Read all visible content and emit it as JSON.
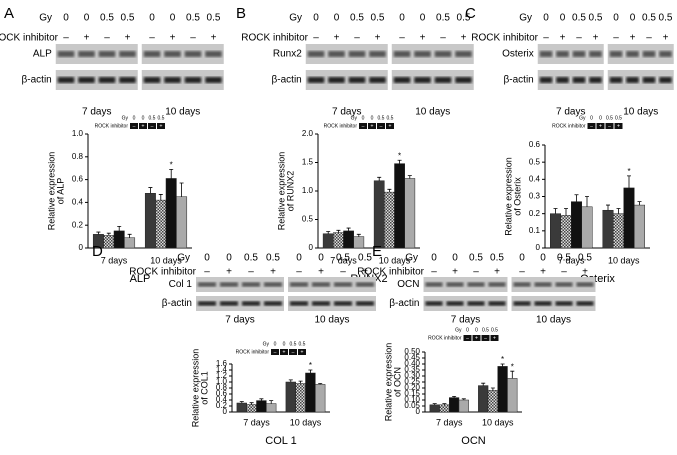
{
  "chart_data": [
    {
      "type": "bar",
      "panel": "A",
      "xlabel": "ALP",
      "ylabel": [
        "Relative expression",
        "of ALP"
      ],
      "categories": [
        "7 days",
        "10 days"
      ],
      "series": [
        {
          "color": "#3a3a3a",
          "values": [
            0.12,
            0.48
          ],
          "errors": [
            0.02,
            0.05
          ]
        },
        {
          "color": "#777777",
          "pattern": "checker",
          "values": [
            0.11,
            0.42
          ],
          "errors": [
            0.02,
            0.05
          ]
        },
        {
          "color": "#111111",
          "values": [
            0.15,
            0.61
          ],
          "errors": [
            0.04,
            0.08
          ]
        },
        {
          "color": "#aaaaaa",
          "values": [
            0.09,
            0.45
          ],
          "errors": [
            0.03,
            0.12
          ]
        }
      ],
      "ylim": [
        0,
        1
      ],
      "yticks": [
        0,
        0.2,
        0.4,
        0.6,
        0.8,
        {
          "value": 1,
          "label": "1.0"
        }
      ],
      "annotations": [
        {
          "text": "*",
          "series": 2,
          "category": 1
        }
      ],
      "legend": {
        "gy_label": "Gy",
        "gy": [
          "0",
          "0",
          "0.5",
          "0.5"
        ],
        "rock_label": "ROCK inhibitor",
        "rock": [
          "–",
          "+",
          "–",
          "+"
        ]
      },
      "blot": {
        "gy_label": "Gy",
        "gy": [
          "0",
          "0",
          "0.5",
          "0.5",
          "0",
          "0",
          "0.5",
          "0.5"
        ],
        "rock_label": "ROCK inhibitor",
        "rock": [
          "–",
          "+",
          "–",
          "+",
          "–",
          "+",
          "–",
          "+"
        ],
        "bands": [
          "ALP",
          "β-actin"
        ],
        "groups": [
          "7 days",
          "10 days"
        ]
      }
    },
    {
      "type": "bar",
      "panel": "B",
      "xlabel": "RUNX2",
      "ylabel": [
        "Relative expression",
        "of RUNX2"
      ],
      "categories": [
        "7 days",
        "10 days"
      ],
      "series": [
        {
          "color": "#3a3a3a",
          "values": [
            0.25,
            1.18
          ],
          "errors": [
            0.04,
            0.06
          ]
        },
        {
          "color": "#777777",
          "pattern": "checker",
          "values": [
            0.27,
            0.98
          ],
          "errors": [
            0.04,
            0.05
          ]
        },
        {
          "color": "#111111",
          "values": [
            0.3,
            1.48
          ],
          "errors": [
            0.05,
            0.06
          ]
        },
        {
          "color": "#aaaaaa",
          "values": [
            0.2,
            1.22
          ],
          "errors": [
            0.04,
            0.05
          ]
        }
      ],
      "ylim": [
        0,
        2
      ],
      "yticks": [
        0,
        0.5,
        {
          "value": 1,
          "label": "1.0"
        },
        1.5,
        {
          "value": 2,
          "label": "2.0"
        }
      ],
      "annotations": [
        {
          "text": "*",
          "series": 2,
          "category": 1
        }
      ],
      "legend": {
        "gy_label": "Gy",
        "gy": [
          "0",
          "0",
          "0.5",
          "0.5"
        ],
        "rock_label": "ROCK inhibitor",
        "rock": [
          "–",
          "+",
          "–",
          "+"
        ]
      },
      "blot": {
        "gy_label": "Gy",
        "gy": [
          "0",
          "0",
          "0.5",
          "0.5",
          "0",
          "0",
          "0.5",
          "0.5"
        ],
        "rock_label": "ROCK inhibitor",
        "rock": [
          "–",
          "+",
          "–",
          "+",
          "–",
          "+",
          "–",
          "+"
        ],
        "bands": [
          "Runx2",
          "β-actin"
        ],
        "groups": [
          "7 days",
          "10 days"
        ]
      }
    },
    {
      "type": "bar",
      "panel": "C",
      "xlabel": "Osterix",
      "ylabel": [
        "Relative expression",
        "of Osterix"
      ],
      "categories": [
        "7 days",
        "10 days"
      ],
      "series": [
        {
          "color": "#3a3a3a",
          "values": [
            0.2,
            0.22
          ],
          "errors": [
            0.03,
            0.03
          ]
        },
        {
          "color": "#777777",
          "pattern": "checker",
          "values": [
            0.19,
            0.2
          ],
          "errors": [
            0.04,
            0.03
          ]
        },
        {
          "color": "#111111",
          "values": [
            0.27,
            0.35
          ],
          "errors": [
            0.04,
            0.07
          ]
        },
        {
          "color": "#aaaaaa",
          "values": [
            0.24,
            0.25
          ],
          "errors": [
            0.06,
            0.02
          ]
        }
      ],
      "ylim": [
        0,
        0.6
      ],
      "yticks": [
        0,
        0.1,
        0.2,
        0.3,
        0.4,
        0.5,
        0.6
      ],
      "annotations": [
        {
          "text": "*",
          "series": 2,
          "category": 1
        }
      ],
      "legend": {
        "gy_label": "Gy",
        "gy": [
          "0",
          "0",
          "0.5",
          "0.5"
        ],
        "rock_label": "ROCK inhibitor",
        "rock": [
          "–",
          "+",
          "–",
          "+"
        ]
      },
      "blot": {
        "gy_label": "Gy",
        "gy": [
          "0",
          "0",
          "0.5",
          "0.5",
          "0",
          "0",
          "0.5",
          "0.5"
        ],
        "rock_label": "ROCK inhibitor",
        "rock": [
          "–",
          "+",
          "–",
          "+",
          "–",
          "+",
          "–",
          "+"
        ],
        "bands": [
          "Osterix",
          "β-actin"
        ],
        "groups": [
          "7 days",
          "10 days"
        ]
      }
    },
    {
      "type": "bar",
      "panel": "D",
      "xlabel": "COL 1",
      "ylabel": [
        "Relative expression",
        "of COL1"
      ],
      "categories": [
        "7 days",
        "10 days"
      ],
      "series": [
        {
          "color": "#3a3a3a",
          "values": [
            0.3,
            1.0
          ],
          "errors": [
            0.05,
            0.07
          ]
        },
        {
          "color": "#777777",
          "pattern": "checker",
          "values": [
            0.25,
            0.95
          ],
          "errors": [
            0.06,
            0.08
          ]
        },
        {
          "color": "#111111",
          "values": [
            0.38,
            1.3
          ],
          "errors": [
            0.06,
            0.1
          ]
        },
        {
          "color": "#aaaaaa",
          "values": [
            0.28,
            0.92
          ],
          "errors": [
            0.1,
            0.03
          ]
        }
      ],
      "ylim": [
        0,
        1.6
      ],
      "yticks": [
        0,
        0.2,
        0.4,
        0.6,
        0.8,
        {
          "value": 1,
          "label": "1.0"
        },
        1.2,
        1.4,
        1.6
      ],
      "annotations": [
        {
          "text": "*",
          "series": 2,
          "category": 1
        }
      ],
      "legend": {
        "gy_label": "Gy",
        "gy": [
          "0",
          "0",
          "0.5",
          "0.5"
        ],
        "rock_label": "ROCK inhibitor",
        "rock": [
          "–",
          "+",
          "–",
          "+"
        ]
      },
      "blot": {
        "gy_label": "Gy",
        "gy": [
          "0",
          "0",
          "0.5",
          "0.5",
          "0",
          "0",
          "0.5",
          "0.5"
        ],
        "rock_label": "ROCK inhibitor",
        "rock": [
          "–",
          "+",
          "–",
          "+",
          "–",
          "+",
          "–",
          "+"
        ],
        "bands": [
          "Col 1",
          "β-actin"
        ],
        "groups": [
          "7 days",
          "10 days"
        ]
      }
    },
    {
      "type": "bar",
      "panel": "E",
      "xlabel": "OCN",
      "ylabel": [
        "Relative expression",
        "of OCN"
      ],
      "categories": [
        "7 days",
        "10 days"
      ],
      "series": [
        {
          "color": "#3a3a3a",
          "values": [
            0.06,
            0.22
          ],
          "errors": [
            0.01,
            0.02
          ]
        },
        {
          "color": "#777777",
          "pattern": "checker",
          "values": [
            0.06,
            0.18
          ],
          "errors": [
            0.01,
            0.02
          ]
        },
        {
          "color": "#111111",
          "values": [
            0.12,
            0.38
          ],
          "errors": [
            0.01,
            0.02
          ]
        },
        {
          "color": "#aaaaaa",
          "values": [
            0.1,
            0.28
          ],
          "errors": [
            0.01,
            0.06
          ]
        }
      ],
      "ylim": [
        0,
        0.5
      ],
      "yticks": [
        0,
        0.05,
        {
          "value": 0.1,
          "label": "0.10"
        },
        0.15,
        {
          "value": 0.2,
          "label": "0.20"
        },
        0.25,
        {
          "value": 0.3,
          "label": "0.30"
        },
        0.35,
        {
          "value": 0.4,
          "label": "0.40"
        },
        0.45,
        {
          "value": 0.5,
          "label": "0.50"
        }
      ],
      "annotations": [
        {
          "text": "*",
          "series": 2,
          "category": 1
        },
        {
          "text": "*",
          "series": 3,
          "category": 1
        }
      ],
      "legend": {
        "gy_label": "Gy",
        "gy": [
          "0",
          "0",
          "0.5",
          "0.5"
        ],
        "rock_label": "ROCK inhibitor",
        "rock": [
          "–",
          "+",
          "–",
          "+"
        ]
      },
      "blot": {
        "gy_label": "Gy",
        "gy": [
          "0",
          "0",
          "0.5",
          "0.5",
          "0",
          "0",
          "0.5",
          "0.5"
        ],
        "rock_label": "ROCK inhibitor",
        "rock": [
          "–",
          "+",
          "–",
          "+",
          "–",
          "+",
          "–",
          "+"
        ],
        "bands": [
          "OCN",
          "β-actin"
        ],
        "groups": [
          "7 days",
          "10 days"
        ]
      }
    }
  ]
}
